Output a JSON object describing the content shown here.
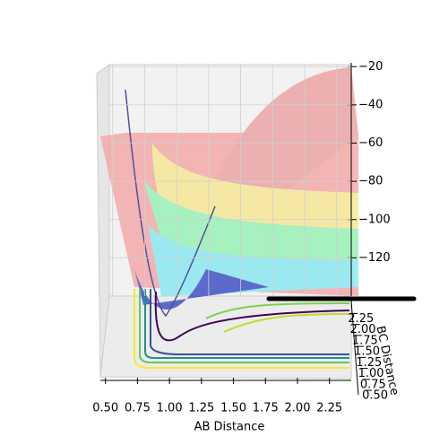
{
  "chart_data": {
    "type": "surface3d",
    "xlabel": "AB Distance",
    "ylabel": "BC Distance",
    "xlim": [
      0.46,
      2.42
    ],
    "xticks": [
      {
        "value": 0.5,
        "label": "0.50"
      },
      {
        "value": 0.75,
        "label": "0.75"
      },
      {
        "value": 1.0,
        "label": "1.00"
      },
      {
        "value": 1.25,
        "label": "1.25"
      },
      {
        "value": 1.5,
        "label": "1.50"
      },
      {
        "value": 1.75,
        "label": "1.75"
      },
      {
        "value": 2.0,
        "label": "2.00"
      },
      {
        "value": 2.25,
        "label": "2.25"
      }
    ],
    "ylim": [
      0.4,
      2.4
    ],
    "yticks": [
      {
        "value": 0.5,
        "label": "0.50"
      },
      {
        "value": 0.75,
        "label": "0.75"
      },
      {
        "value": 1.0,
        "label": "1.00"
      },
      {
        "value": 1.25,
        "label": "1.25"
      },
      {
        "value": 1.5,
        "label": "1.50"
      },
      {
        "value": 1.75,
        "label": "1.75"
      },
      {
        "value": 2.0,
        "label": "2.00"
      },
      {
        "value": 2.25,
        "label": "2.25"
      }
    ],
    "zlim": [
      -140,
      -18
    ],
    "zticks": [
      {
        "value": -20,
        "label": "−20"
      },
      {
        "value": -40,
        "label": "−40"
      },
      {
        "value": -60,
        "label": "−60"
      },
      {
        "value": -80,
        "label": "−80"
      },
      {
        "value": -100,
        "label": "−100"
      },
      {
        "value": -120,
        "label": "−120"
      }
    ]
  }
}
